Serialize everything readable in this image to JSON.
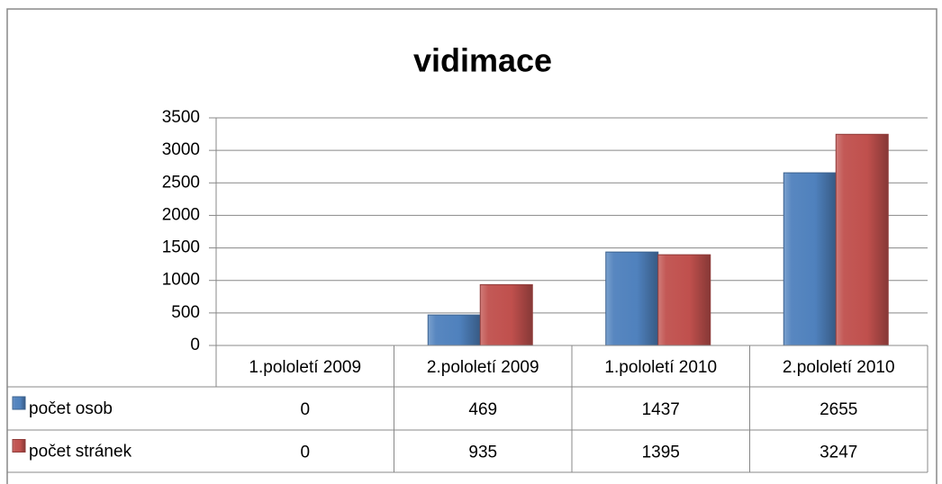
{
  "chart_data": {
    "type": "bar",
    "title": "vidimace",
    "categories": [
      "1.pololetí 2009",
      "2.pololetí 2009",
      "1.pololetí 2010",
      "2.pololetí 2010"
    ],
    "series": [
      {
        "name": "počet osob",
        "color": "#4f81bd",
        "values": [
          0,
          469,
          1437,
          2655
        ]
      },
      {
        "name": "počet stránek",
        "color": "#c0504d",
        "values": [
          0,
          935,
          1395,
          3247
        ]
      }
    ],
    "ylim": [
      0,
      3500
    ],
    "yticks": [
      0,
      500,
      1000,
      1500,
      2000,
      2500,
      3000,
      3500
    ],
    "grid": true
  }
}
